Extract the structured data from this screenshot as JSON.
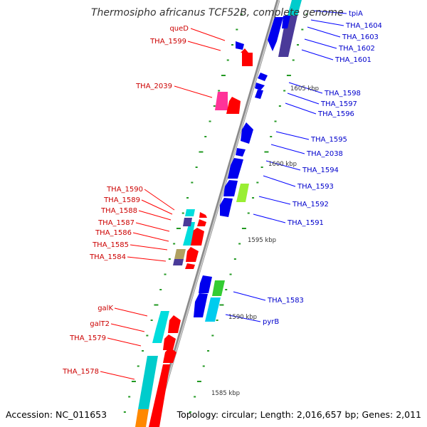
{
  "title": "Thermosipho africanus TCF52B, complete genome",
  "footer": {
    "accession": "Accession: NC_011653",
    "topology": "Topology: circular; Length: 2,016,657 bp; Genes: 2,011"
  },
  "colors": {
    "forward_label": "#cc0000",
    "reverse_label": "#0000cc",
    "backbone": "#888888",
    "ticks": "#229922"
  },
  "kbp_marks": [
    "1605 kbp",
    "1600 kbp",
    "1595 kbp",
    "1590 kbp",
    "1585 kbp"
  ],
  "forward_labels": [
    "queD",
    "THA_1599",
    "THA_2039",
    "THA_1590",
    "THA_1589",
    "THA_1588",
    "THA_1587",
    "THA_1586",
    "THA_1585",
    "THA_1584",
    "galK",
    "galT2",
    "THA_1579",
    "THA_1578"
  ],
  "reverse_labels": [
    "tpiA",
    "THA_1604",
    "THA_1603",
    "THA_1602",
    "THA_1601",
    "THA_1598",
    "THA_1597",
    "THA_1596",
    "THA_1595",
    "THA_2038",
    "THA_1594",
    "THA_1593",
    "THA_1592",
    "THA_1591",
    "THA_1583",
    "pyrB"
  ]
}
